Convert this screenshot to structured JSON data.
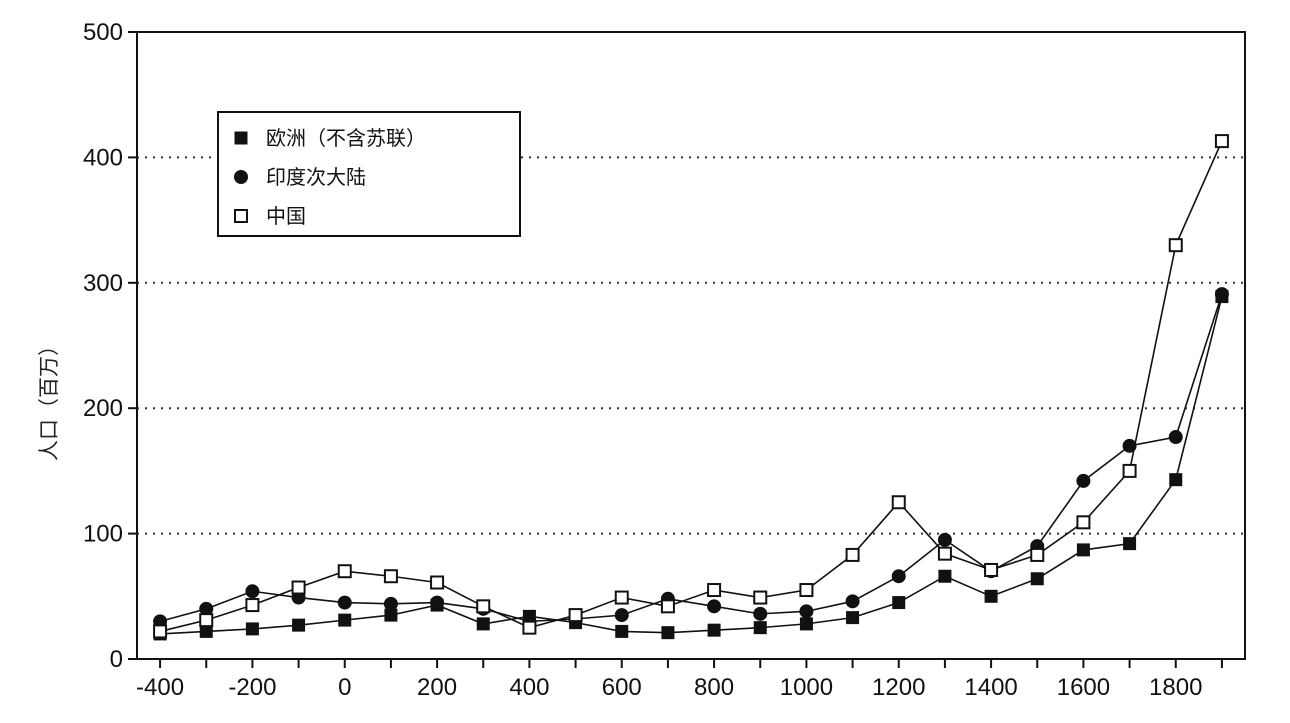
{
  "chart_data": {
    "type": "line",
    "title": "",
    "xlabel": "",
    "ylabel": "人口（百万）",
    "xlim": [
      -450,
      1950
    ],
    "ylim": [
      0,
      500
    ],
    "x_ticks": [
      -400,
      -200,
      0,
      200,
      400,
      600,
      800,
      1000,
      1200,
      1400,
      1600,
      1800
    ],
    "y_ticks": [
      0,
      100,
      200,
      300,
      400,
      500
    ],
    "grid": "horizontal-dotted",
    "legend_position": "top-left",
    "x": [
      -400,
      -300,
      -200,
      -100,
      0,
      100,
      200,
      300,
      400,
      500,
      600,
      700,
      800,
      900,
      1000,
      1100,
      1200,
      1300,
      1400,
      1500,
      1600,
      1700,
      1800,
      1900
    ],
    "series": [
      {
        "name": "欧洲（不含苏联）",
        "marker": "filled-square",
        "values": [
          20,
          22,
          24,
          27,
          31,
          35,
          43,
          28,
          34,
          29,
          22,
          21,
          23,
          25,
          28,
          33,
          45,
          66,
          50,
          64,
          87,
          92,
          143,
          289
        ]
      },
      {
        "name": "印度次大陆",
        "marker": "filled-circle",
        "values": [
          30,
          40,
          54,
          49,
          45,
          44,
          45,
          40,
          30,
          32,
          35,
          48,
          42,
          36,
          38,
          46,
          66,
          95,
          70,
          90,
          142,
          170,
          177,
          291
        ]
      },
      {
        "name": "中国",
        "marker": "open-square",
        "values": [
          22,
          31,
          43,
          57,
          70,
          66,
          61,
          42,
          25,
          35,
          49,
          42,
          55,
          49,
          55,
          83,
          125,
          84,
          71,
          83,
          109,
          150,
          330,
          413
        ]
      }
    ]
  }
}
